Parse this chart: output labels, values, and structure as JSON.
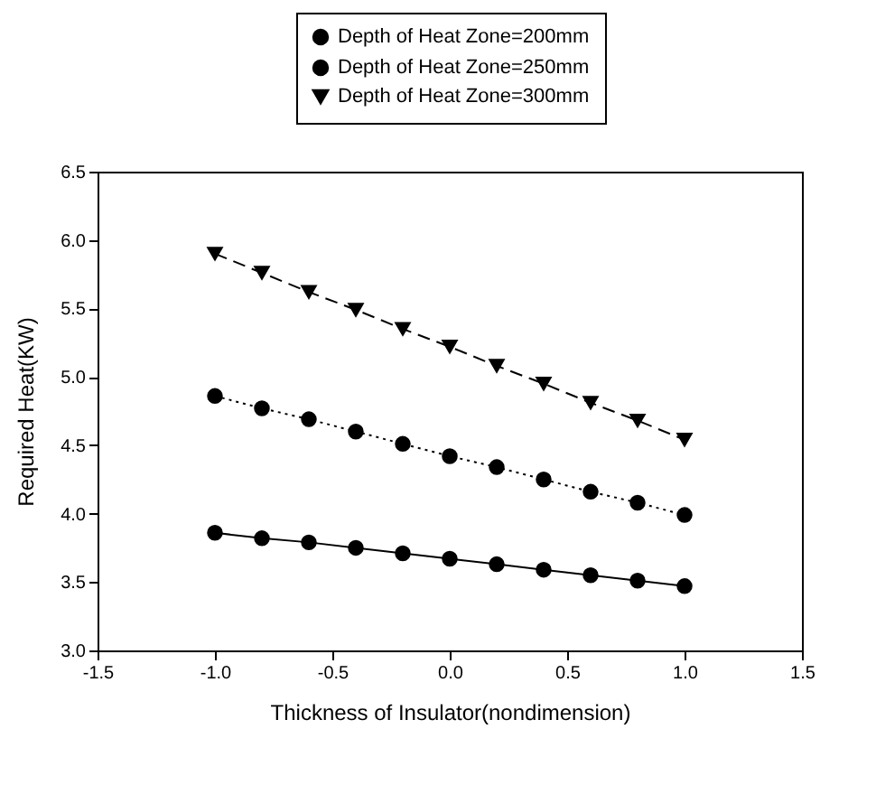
{
  "chart_data": {
    "type": "line",
    "xlabel": "Thickness of Insulator(nondimension)",
    "ylabel": "Required Heat(KW)",
    "x": [
      -1.0,
      -0.8,
      -0.6,
      -0.4,
      -0.2,
      0.0,
      0.2,
      0.4,
      0.6,
      0.8,
      1.0
    ],
    "series": [
      {
        "name": "Depth of Heat Zone=200mm",
        "color": "#000000",
        "marker": "circle",
        "line_style": "solid",
        "values": [
          3.86,
          3.82,
          3.79,
          3.75,
          3.71,
          3.67,
          3.63,
          3.59,
          3.55,
          3.51,
          3.47
        ]
      },
      {
        "name": "Depth of Heat Zone=250mm",
        "color": "#000000",
        "marker": "circle",
        "line_style": "dotted",
        "values": [
          4.86,
          4.77,
          4.69,
          4.6,
          4.51,
          4.42,
          4.34,
          4.25,
          4.16,
          4.08,
          3.99
        ]
      },
      {
        "name": "Depth of Heat Zone=300mm",
        "color": "#000000",
        "marker": "triangle",
        "line_style": "dashed",
        "values": [
          5.9,
          5.76,
          5.62,
          5.49,
          5.35,
          5.22,
          5.08,
          4.95,
          4.81,
          4.68,
          4.54
        ]
      }
    ],
    "xlim": [
      -1.5,
      1.5
    ],
    "xticks": [
      {
        "value": -1.5,
        "label": "-1.5"
      },
      {
        "value": -1,
        "label": "-1.0"
      },
      {
        "value": -0.5,
        "label": "-0.5"
      },
      {
        "value": 0,
        "label": "0.0"
      },
      {
        "value": 0.5,
        "label": "0.5"
      },
      {
        "value": 1,
        "label": "1.0"
      },
      {
        "value": 1.5,
        "label": "1.5"
      }
    ],
    "ylim": [
      3.0,
      6.5
    ],
    "yticks": [
      {
        "value": 3,
        "label": "3.0"
      },
      {
        "value": 3.5,
        "label": "3.5"
      },
      {
        "value": 4,
        "label": "4.0"
      },
      {
        "value": 4.5,
        "label": "4.5"
      },
      {
        "value": 5,
        "label": "5.0"
      },
      {
        "value": 5.5,
        "label": "5.5"
      },
      {
        "value": 6,
        "label": "6.0"
      },
      {
        "value": 6.5,
        "label": "6.5"
      }
    ],
    "grid": false,
    "legend": "top"
  }
}
